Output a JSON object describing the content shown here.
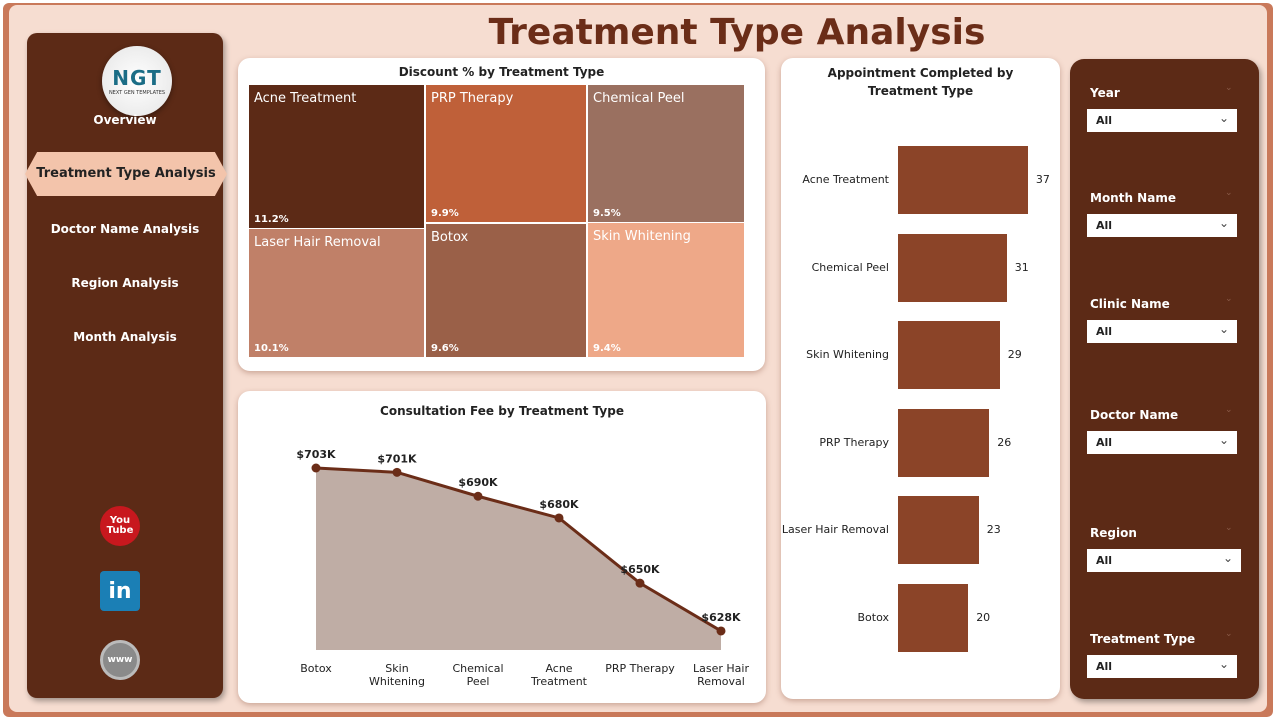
{
  "title": "Treatment Type Analysis",
  "logo": {
    "text": "NGT",
    "subtitle": "NEXT GEN TEMPLATES"
  },
  "nav": [
    {
      "label": "Overview"
    },
    {
      "label": "Treatment Type Analysis",
      "active": true
    },
    {
      "label": "Doctor Name Analysis"
    },
    {
      "label": "Region Analysis"
    },
    {
      "label": "Month Analysis"
    }
  ],
  "social": [
    {
      "icon": "youtube-icon",
      "label": "You Tube"
    },
    {
      "icon": "linkedin-icon",
      "label": "in"
    },
    {
      "icon": "globe-icon",
      "label": "www"
    }
  ],
  "treemap": {
    "title": "Discount % by Treatment Type",
    "items": [
      {
        "name": "Acne Treatment",
        "value": "11.2%",
        "color": "#5c2a16"
      },
      {
        "name": "PRP Therapy",
        "value": "9.9%",
        "color": "#bf6039"
      },
      {
        "name": "Chemical Peel",
        "value": "9.5%",
        "color": "#9a7060"
      },
      {
        "name": "Laser Hair Removal",
        "value": "10.1%",
        "color": "#c08068"
      },
      {
        "name": "Botox",
        "value": "9.6%",
        "color": "#9a6048"
      },
      {
        "name": "Skin Whitening",
        "value": "9.4%",
        "color": "#eea888"
      }
    ]
  },
  "chart_data": [
    {
      "type": "area",
      "title": "Consultation Fee by Treatment Type",
      "categories": [
        "Botox",
        "Skin Whitening",
        "Chemical Peel",
        "Acne Treatment",
        "PRP Therapy",
        "Laser Hair Removal"
      ],
      "values": [
        703,
        701,
        690,
        680,
        650,
        628
      ],
      "labels": [
        "$703K",
        "$701K",
        "$690K",
        "$680K",
        "$650K",
        "$628K"
      ],
      "colors": {
        "line": "#6b2d18",
        "fill": "#bfada5"
      }
    },
    {
      "type": "bar",
      "orientation": "horizontal",
      "title": "Appointment Completed by Treatment Type",
      "categories": [
        "Acne Treatment",
        "Chemical Peel",
        "Skin Whitening",
        "PRP Therapy",
        "Laser Hair Removal",
        "Botox"
      ],
      "values": [
        37,
        31,
        29,
        26,
        23,
        20
      ],
      "color": "#8b4428"
    }
  ],
  "filters": [
    {
      "label": "Year",
      "value": "All"
    },
    {
      "label": "Month Name",
      "value": "All"
    },
    {
      "label": "Clinic Name",
      "value": "All"
    },
    {
      "label": "Doctor Name",
      "value": "All"
    },
    {
      "label": "Region",
      "value": "All"
    },
    {
      "label": "Treatment Type",
      "value": "All"
    }
  ]
}
